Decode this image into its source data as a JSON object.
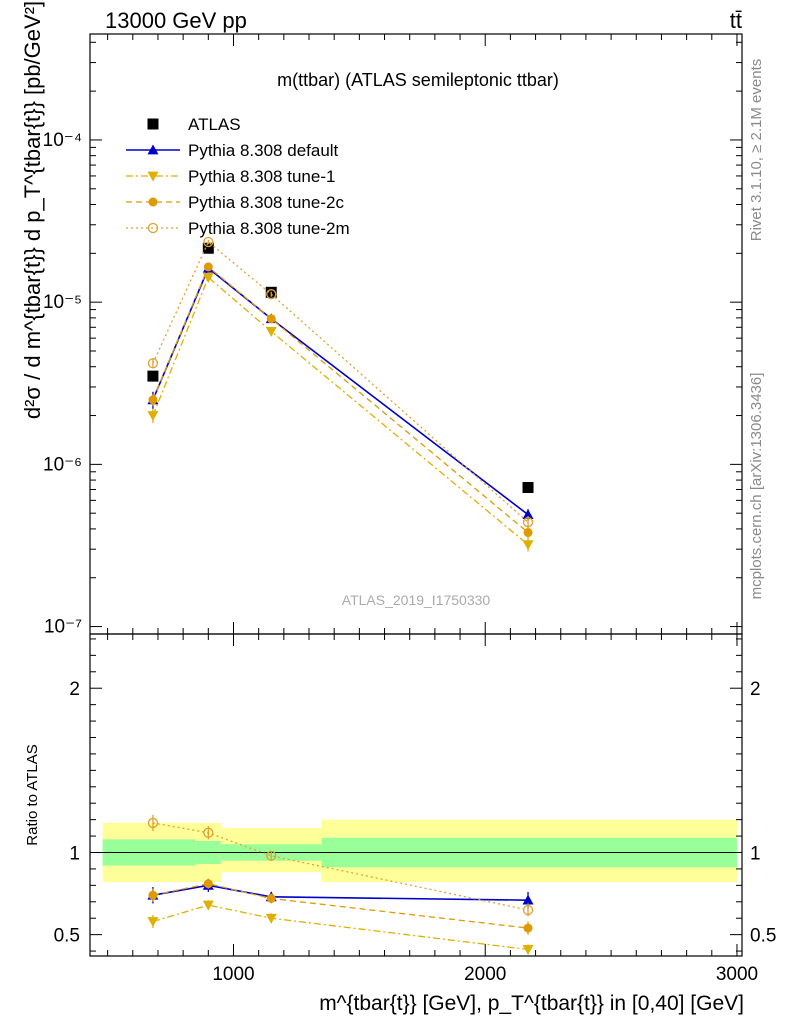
{
  "header": {
    "left": "13000 GeV pp",
    "right": "tt̄"
  },
  "side_labels": {
    "rivet": "Rivet 3.1.10, ≥ 2.1M events",
    "mcplots": "mcplots.cern.ch [arXiv:1306.3436]"
  },
  "chart_data": [
    {
      "type": "line",
      "title": "m(ttbar) (ATLAS semileptonic ttbar)",
      "ylabel": "d²σ / d m^{tbar{t}} d p_T^{tbar{t}} [pb/GeV²]",
      "yscale": "log",
      "ylim": [
        9e-08,
        0.00045
      ],
      "xlim": [
        430,
        3020
      ],
      "yticks": [
        {
          "value": 1e-07,
          "label": "10⁻⁷"
        },
        {
          "value": 1e-06,
          "label": "10⁻⁶"
        },
        {
          "value": 1e-05,
          "label": "10⁻⁵"
        },
        {
          "value": 0.0001,
          "label": "10⁻⁴"
        }
      ],
      "watermark": "ATLAS_2019_I1750330",
      "legend_placement": "top-left",
      "x": [
        680,
        900,
        1150,
        2170
      ],
      "series": [
        {
          "name": "ATLAS",
          "color": "#000000",
          "marker": "square",
          "line": "none",
          "values": [
            3.5e-06,
            2.15e-05,
            1.15e-05,
            7.2e-07
          ]
        },
        {
          "name": "Pythia 8.308 default",
          "color": "#0000cc",
          "marker": "triangle-up",
          "line": "solid",
          "values": [
            2.5e-06,
            1.62e-05,
            7.9e-06,
            4.9e-07
          ],
          "errors": [
            3e-07,
            6e-07,
            4e-07,
            4e-08
          ]
        },
        {
          "name": "Pythia 8.308 tune-1",
          "color": "#e0b000",
          "marker": "triangle-down",
          "line": "dashdot",
          "values": [
            2e-06,
            1.42e-05,
            6.6e-06,
            3.2e-07
          ],
          "errors": [
            2e-07,
            5e-07,
            3e-07,
            3e-08
          ]
        },
        {
          "name": "Pythia 8.308 tune-2c",
          "color": "#e09a00",
          "marker": "circle",
          "line": "dashed",
          "values": [
            2.5e-06,
            1.65e-05,
            7.9e-06,
            3.8e-07
          ],
          "errors": [
            2e-07,
            5e-07,
            3e-07,
            3e-08
          ]
        },
        {
          "name": "Pythia 8.308 tune-2m",
          "color": "#e0a030",
          "marker": "open-circle",
          "line": "dotted",
          "values": [
            4.2e-06,
            2.35e-05,
            1.12e-05,
            4.4e-07
          ],
          "errors": [
            3e-07,
            7e-07,
            4e-07,
            4e-08
          ]
        }
      ]
    },
    {
      "type": "line",
      "xlabel": "m^{tbar{t}} [GeV], p_T^{tbar{t}} in [0,40] [GeV]",
      "ylabel": "Ratio to ATLAS",
      "ylim": [
        0.37,
        2.33
      ],
      "xlim": [
        430,
        3020
      ],
      "xticks": [
        1000,
        2000,
        3000
      ],
      "yticks": [
        0.5,
        1,
        2
      ],
      "reference_line": 1,
      "bands": [
        {
          "x_from": 480,
          "x_to": 850,
          "inner": [
            0.92,
            1.08
          ],
          "outer": [
            0.82,
            1.18
          ]
        },
        {
          "x_from": 850,
          "x_to": 950,
          "inner": [
            0.93,
            1.07
          ],
          "outer": [
            0.82,
            1.18
          ]
        },
        {
          "x_from": 950,
          "x_to": 1350,
          "inner": [
            0.95,
            1.05
          ],
          "outer": [
            0.88,
            1.15
          ]
        },
        {
          "x_from": 1350,
          "x_to": 3000,
          "inner": [
            0.91,
            1.09
          ],
          "outer": [
            0.82,
            1.2
          ]
        }
      ],
      "band_colors": {
        "inner": "#99ff99",
        "outer": "#ffff99"
      },
      "x": [
        680,
        900,
        1150,
        2170
      ],
      "series": [
        {
          "name": "Pythia 8.308 default",
          "color": "#0000cc",
          "marker": "triangle-up",
          "line": "solid",
          "values": [
            0.74,
            0.8,
            0.73,
            0.71
          ],
          "errors": [
            0.05,
            0.04,
            0.03,
            0.05
          ]
        },
        {
          "name": "Pythia 8.308 tune-1",
          "color": "#e0b000",
          "marker": "triangle-down",
          "line": "dashdot",
          "values": [
            0.58,
            0.68,
            0.6,
            0.41
          ],
          "errors": [
            0.04,
            0.03,
            0.03,
            0.03
          ]
        },
        {
          "name": "Pythia 8.308 tune-2c",
          "color": "#e09a00",
          "marker": "circle",
          "line": "dashed",
          "values": [
            0.74,
            0.81,
            0.72,
            0.54
          ],
          "errors": [
            0.04,
            0.03,
            0.03,
            0.04
          ]
        },
        {
          "name": "Pythia 8.308 tune-2m",
          "color": "#e0a030",
          "marker": "open-circle",
          "line": "dotted",
          "values": [
            1.18,
            1.12,
            0.98,
            0.65
          ],
          "errors": [
            0.05,
            0.04,
            0.03,
            0.04
          ]
        }
      ]
    }
  ]
}
